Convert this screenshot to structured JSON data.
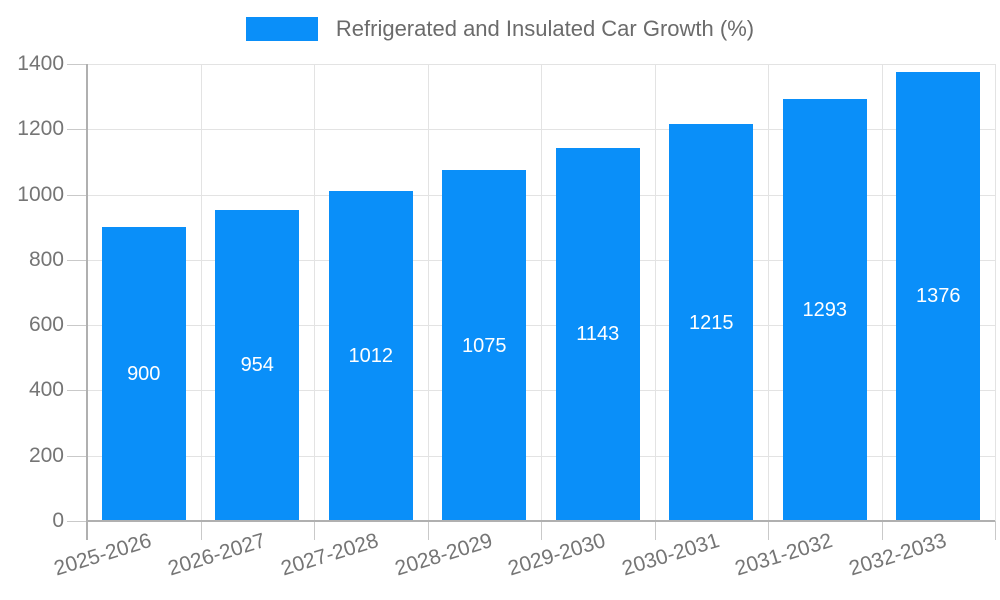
{
  "legend": {
    "label": "Refrigerated and Insulated Car Growth (%)",
    "swatch_color": "#0a8ff9"
  },
  "chart_data": {
    "type": "bar",
    "title": "Refrigerated and Insulated Car Growth (%)",
    "categories": [
      "2025-2026",
      "2026-2027",
      "2027-2028",
      "2028-2029",
      "2029-2030",
      "2030-2031",
      "2031-2032",
      "2032-2033"
    ],
    "values": [
      900,
      954,
      1012,
      1075,
      1143,
      1215,
      1293,
      1376
    ],
    "value_labels": [
      "900",
      "954",
      "1012",
      "1075",
      "1143",
      "1215",
      "1293",
      "1376"
    ],
    "xlabel": "",
    "ylabel": "",
    "ylim": [
      0,
      1400
    ],
    "yticks": [
      0,
      200,
      400,
      600,
      800,
      1000,
      1200,
      1400
    ],
    "grid": true,
    "legend_position": "top",
    "x_label_rotation_deg": -17,
    "colors": {
      "bar": "#0a8ff9",
      "value_label": "#ffffff",
      "grid_line": "#e3e3e3",
      "tick_mark": "#c9c9c9",
      "axis_line": "#b0b0b0",
      "tick_text": "#757575",
      "legend_text": "#6b6b6b",
      "background": "#ffffff"
    }
  }
}
